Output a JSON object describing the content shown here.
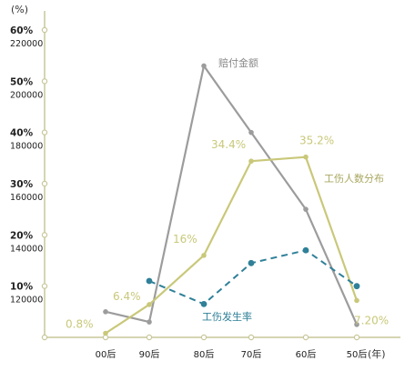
{
  "chart_data": {
    "type": "line",
    "y_unit_label": "(%)",
    "x_unit_label": "(年)",
    "categories": [
      "00后",
      "90后",
      "80后",
      "70后",
      "60后",
      "50后"
    ],
    "y_ticks_percent": [
      "60%",
      "50%",
      "40%",
      "30%",
      "20%",
      "10%"
    ],
    "y_ticks_amount": [
      "220000",
      "200000",
      "180000",
      "160000",
      "140000",
      "120000"
    ],
    "ylim_percent": [
      0,
      60
    ],
    "ylim_amount": [
      100000,
      220000
    ],
    "axis_color": "#c8c79a",
    "series": [
      {
        "name": "赔付金额",
        "axis": "amount",
        "color": "#9c9c9c",
        "dashed": false,
        "values": [
          110000,
          106000,
          206000,
          180000,
          150000,
          105000
        ],
        "point_labels": [
          "",
          "",
          "",
          "",
          "",
          ""
        ]
      },
      {
        "name": "工伤人数分布",
        "axis": "percent",
        "color": "#c9c87a",
        "dashed": false,
        "values": [
          0.8,
          6.4,
          16,
          34.4,
          35.2,
          7.2
        ],
        "point_labels": [
          "0.8%",
          "6.4%",
          "16%",
          "34.4%",
          "35.2%",
          "7.20%"
        ]
      },
      {
        "name": "工伤发生率",
        "axis": "amount",
        "color": "#2f8098",
        "dashed": true,
        "start_index": 1,
        "values": [
          null,
          122000,
          113000,
          129000,
          134000,
          120000
        ],
        "point_labels": [
          "",
          "",
          "",
          "",
          "",
          ""
        ]
      }
    ]
  }
}
